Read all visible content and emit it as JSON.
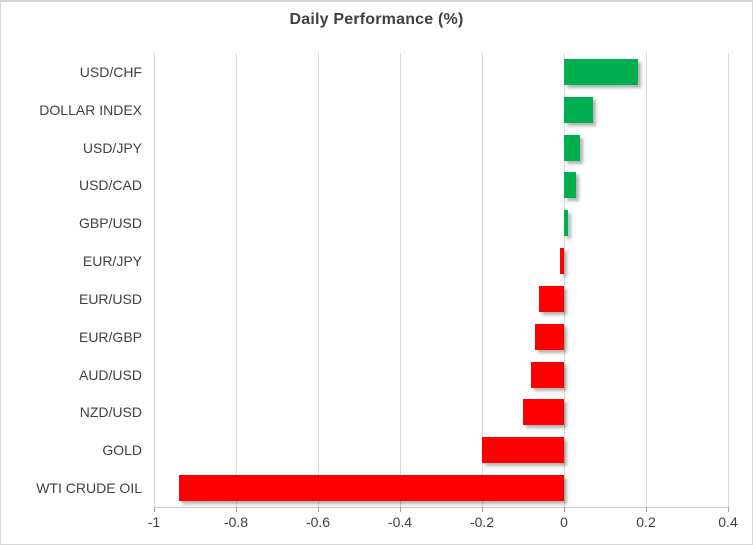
{
  "chart_data": {
    "type": "bar",
    "orientation": "horizontal",
    "title": "Daily Performance (%)",
    "categories": [
      "USD/CHF",
      "DOLLAR INDEX",
      "USD/JPY",
      "USD/CAD",
      "GBP/USD",
      "EUR/JPY",
      "EUR/USD",
      "EUR/GBP",
      "AUD/USD",
      "NZD/USD",
      "GOLD",
      "WTI CRUDE OIL"
    ],
    "values": [
      0.18,
      0.07,
      0.04,
      0.03,
      0.01,
      -0.01,
      -0.06,
      -0.07,
      -0.08,
      -0.1,
      -0.2,
      -0.94
    ],
    "xlabel": "",
    "ylabel": "",
    "xlim": [
      -1,
      0.4
    ],
    "x_ticks": [
      -1,
      -0.8,
      -0.6,
      -0.4,
      -0.2,
      0,
      0.2,
      0.4
    ],
    "x_tick_labels": [
      "-1",
      "-0.8",
      "-0.6",
      "-0.4",
      "-0.2",
      "0",
      "0.2",
      "0.4"
    ],
    "grid": true,
    "legend": "none",
    "positive_color": "#00B050",
    "negative_color": "#FF0000",
    "gridline_color": "#D9D9D9",
    "axis_line_color": "#C9C9C9",
    "text_color": "#404040"
  }
}
